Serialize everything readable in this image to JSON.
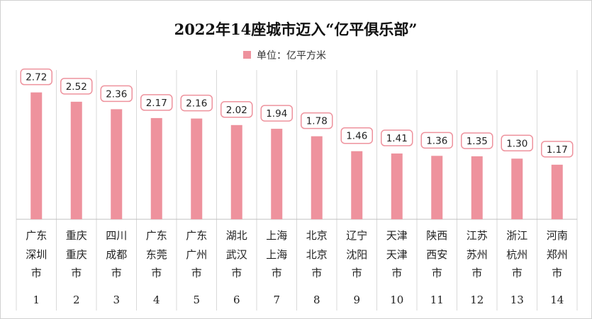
{
  "chart_data": {
    "type": "bar",
    "title": "2022年14座城市迈入“亿平俱乐部”",
    "legend": "单位：亿平方米",
    "color": "#EE929D",
    "categories": [
      {
        "province": "广东",
        "city": [
          "深圳",
          "市"
        ],
        "rank": "1"
      },
      {
        "province": "重庆",
        "city": [
          "重庆",
          "市"
        ],
        "rank": "2"
      },
      {
        "province": "四川",
        "city": [
          "成都",
          "市"
        ],
        "rank": "3"
      },
      {
        "province": "广东",
        "city": [
          "东莞",
          "市"
        ],
        "rank": "4"
      },
      {
        "province": "广东",
        "city": [
          "广州",
          "市"
        ],
        "rank": "5"
      },
      {
        "province": "湖北",
        "city": [
          "武汉",
          "市"
        ],
        "rank": "6"
      },
      {
        "province": "上海",
        "city": [
          "上海",
          "市"
        ],
        "rank": "7"
      },
      {
        "province": "北京",
        "city": [
          "北京",
          "市"
        ],
        "rank": "8"
      },
      {
        "province": "辽宁",
        "city": [
          "沈阳",
          "市"
        ],
        "rank": "9"
      },
      {
        "province": "天津",
        "city": [
          "天津",
          "市"
        ],
        "rank": "10"
      },
      {
        "province": "陕西",
        "city": [
          "西安",
          "市"
        ],
        "rank": "11"
      },
      {
        "province": "江苏",
        "city": [
          "苏州",
          "市"
        ],
        "rank": "12"
      },
      {
        "province": "浙江",
        "city": [
          "杭州",
          "市"
        ],
        "rank": "13"
      },
      {
        "province": "河南",
        "city": [
          "郑州",
          "市"
        ],
        "rank": "14"
      }
    ],
    "values": [
      2.72,
      2.52,
      2.36,
      2.17,
      2.16,
      2.02,
      1.94,
      1.78,
      1.46,
      1.41,
      1.36,
      1.35,
      1.3,
      1.17
    ],
    "value_labels": [
      "2.72",
      "2.52",
      "2.36",
      "2.17",
      "2.16",
      "2.02",
      "1.94",
      "1.78",
      "1.46",
      "1.41",
      "1.36",
      "1.35",
      "1.30",
      "1.17"
    ],
    "ylim": [
      0,
      3.2
    ],
    "grid": "vertical"
  }
}
